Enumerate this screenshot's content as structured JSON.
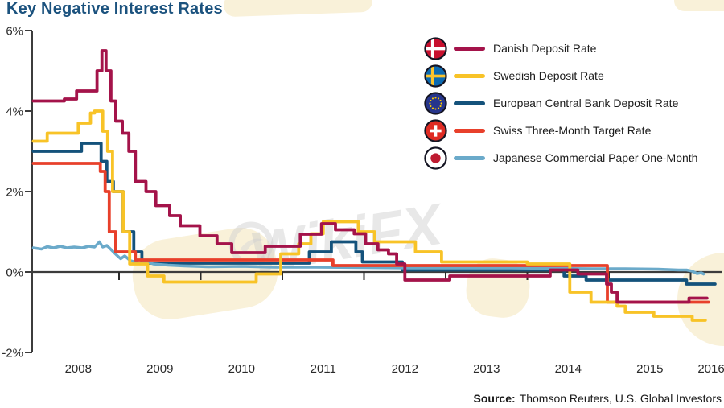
{
  "title": "Key Negative Interest Rates",
  "watermark": {
    "text": "WikiFX"
  },
  "source": {
    "label": "Source:",
    "text": "Thomson Reuters, U.S. Global Investors"
  },
  "chart_data": {
    "type": "line",
    "title": "Key Negative Interest Rates",
    "grid": false,
    "legend_position": "top-right",
    "x_axis": {
      "tick_labels": [
        "2008",
        "2009",
        "2010",
        "2011",
        "2012",
        "2013",
        "2014",
        "2015",
        "2016"
      ],
      "range": [
        2007.95,
        2016.3
      ]
    },
    "y_axis": {
      "unit": "%",
      "ticks": [
        6,
        4,
        2,
        0,
        -2
      ],
      "tick_labels": [
        "6%",
        "4%",
        "2%",
        "0%",
        "-2%"
      ],
      "min": -2,
      "max": 6
    },
    "series": [
      {
        "id": "danish",
        "name": "Danish Deposit Rate",
        "color": "#a4134a",
        "flag": "denmark",
        "interp": "step",
        "points": [
          [
            2007.95,
            4.25
          ],
          [
            2008.33,
            4.3
          ],
          [
            2008.48,
            4.5
          ],
          [
            2008.73,
            5.0
          ],
          [
            2008.79,
            5.5
          ],
          [
            2008.84,
            5.0
          ],
          [
            2008.9,
            4.25
          ],
          [
            2008.96,
            3.75
          ],
          [
            2009.04,
            3.45
          ],
          [
            2009.12,
            3.0
          ],
          [
            2009.2,
            2.25
          ],
          [
            2009.33,
            2.0
          ],
          [
            2009.45,
            1.65
          ],
          [
            2009.62,
            1.4
          ],
          [
            2009.75,
            1.15
          ],
          [
            2009.99,
            0.9
          ],
          [
            2010.2,
            0.7
          ],
          [
            2010.38,
            0.48
          ],
          [
            2010.79,
            0.64
          ],
          [
            2011.22,
            0.94
          ],
          [
            2011.48,
            1.2
          ],
          [
            2011.65,
            1.05
          ],
          [
            2011.88,
            0.95
          ],
          [
            2012.02,
            0.7
          ],
          [
            2012.17,
            0.55
          ],
          [
            2012.3,
            0.45
          ],
          [
            2012.4,
            0.2
          ],
          [
            2012.5,
            -0.2
          ],
          [
            2013.05,
            -0.1
          ],
          [
            2014.28,
            0.05
          ],
          [
            2014.62,
            -0.05
          ],
          [
            2014.97,
            -0.3
          ],
          [
            2015.03,
            -0.5
          ],
          [
            2015.1,
            -0.75
          ],
          [
            2015.98,
            -0.65
          ],
          [
            2016.2,
            -0.65
          ]
        ]
      },
      {
        "id": "swedish",
        "name": "Swedish Deposit Rate",
        "color": "#f8c327",
        "flag": "sweden",
        "interp": "step",
        "points": [
          [
            2007.95,
            3.25
          ],
          [
            2008.12,
            3.45
          ],
          [
            2008.5,
            3.7
          ],
          [
            2008.65,
            3.95
          ],
          [
            2008.7,
            4.0
          ],
          [
            2008.8,
            3.5
          ],
          [
            2008.86,
            3.0
          ],
          [
            2008.92,
            2.0
          ],
          [
            2009.05,
            1.0
          ],
          [
            2009.13,
            0.2
          ],
          [
            2009.35,
            -0.1
          ],
          [
            2009.55,
            -0.25
          ],
          [
            2010.68,
            -0.05
          ],
          [
            2010.98,
            0.45
          ],
          [
            2011.2,
            0.7
          ],
          [
            2011.35,
            0.95
          ],
          [
            2011.5,
            1.25
          ],
          [
            2011.93,
            1.0
          ],
          [
            2012.13,
            0.75
          ],
          [
            2012.63,
            0.5
          ],
          [
            2012.95,
            0.25
          ],
          [
            2014.0,
            0.2
          ],
          [
            2014.52,
            -0.5
          ],
          [
            2014.78,
            -0.75
          ],
          [
            2015.1,
            -0.85
          ],
          [
            2015.2,
            -1.0
          ],
          [
            2015.55,
            -1.1
          ],
          [
            2016.02,
            -1.2
          ],
          [
            2016.18,
            -1.2
          ]
        ]
      },
      {
        "id": "ecb",
        "name": "European Central Bank Deposit Rate",
        "color": "#14527b",
        "flag": "eu",
        "interp": "step",
        "points": [
          [
            2007.95,
            3.0
          ],
          [
            2008.54,
            3.2
          ],
          [
            2008.78,
            2.75
          ],
          [
            2008.85,
            2.25
          ],
          [
            2008.93,
            2.0
          ],
          [
            2009.05,
            1.0
          ],
          [
            2009.18,
            0.5
          ],
          [
            2009.28,
            0.22
          ],
          [
            2011.33,
            0.5
          ],
          [
            2011.6,
            0.75
          ],
          [
            2011.9,
            0.5
          ],
          [
            2011.98,
            0.25
          ],
          [
            2012.47,
            0.05
          ],
          [
            2014.45,
            -0.1
          ],
          [
            2014.72,
            -0.2
          ],
          [
            2015.95,
            -0.3
          ],
          [
            2016.3,
            -0.3
          ]
        ]
      },
      {
        "id": "swiss",
        "name": "Swiss Three-Month Target Rate",
        "color": "#e8402b",
        "flag": "switzerland",
        "interp": "step",
        "points": [
          [
            2007.95,
            2.7
          ],
          [
            2008.77,
            2.5
          ],
          [
            2008.83,
            2.0
          ],
          [
            2008.88,
            1.0
          ],
          [
            2008.96,
            0.5
          ],
          [
            2009.2,
            0.3
          ],
          [
            2011.62,
            0.16
          ],
          [
            2014.98,
            -0.75
          ],
          [
            2016.22,
            -0.75
          ]
        ]
      },
      {
        "id": "japanese",
        "name": "Japanese Commercial Paper One-Month",
        "color": "#6baaca",
        "flag": "japan",
        "interp": "linear",
        "points": [
          [
            2007.95,
            0.6
          ],
          [
            2008.05,
            0.57
          ],
          [
            2008.12,
            0.63
          ],
          [
            2008.2,
            0.6
          ],
          [
            2008.28,
            0.64
          ],
          [
            2008.36,
            0.6
          ],
          [
            2008.45,
            0.62
          ],
          [
            2008.55,
            0.6
          ],
          [
            2008.63,
            0.64
          ],
          [
            2008.7,
            0.62
          ],
          [
            2008.76,
            0.75
          ],
          [
            2008.8,
            0.62
          ],
          [
            2008.85,
            0.66
          ],
          [
            2008.9,
            0.56
          ],
          [
            2008.97,
            0.42
          ],
          [
            2009.02,
            0.33
          ],
          [
            2009.07,
            0.4
          ],
          [
            2009.14,
            0.28
          ],
          [
            2009.25,
            0.22
          ],
          [
            2009.33,
            0.26
          ],
          [
            2009.42,
            0.2
          ],
          [
            2009.6,
            0.17
          ],
          [
            2009.8,
            0.15
          ],
          [
            2010.1,
            0.13
          ],
          [
            2010.5,
            0.14
          ],
          [
            2010.9,
            0.12
          ],
          [
            2011.4,
            0.12
          ],
          [
            2012.0,
            0.11
          ],
          [
            2012.6,
            0.1
          ],
          [
            2013.2,
            0.1
          ],
          [
            2013.8,
            0.1
          ],
          [
            2014.3,
            0.09
          ],
          [
            2014.8,
            0.08
          ],
          [
            2015.2,
            0.08
          ],
          [
            2015.6,
            0.07
          ],
          [
            2015.85,
            0.05
          ],
          [
            2015.95,
            0.05
          ],
          [
            2016.02,
            0.02
          ],
          [
            2016.08,
            -0.04
          ],
          [
            2016.13,
            -0.02
          ],
          [
            2016.16,
            -0.05
          ]
        ]
      }
    ]
  }
}
